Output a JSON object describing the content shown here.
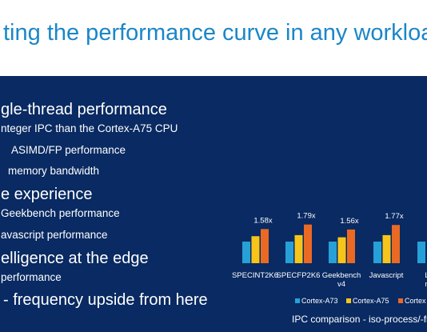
{
  "title": "ting the performance curve in any workloads",
  "bullets": {
    "h1": "gle-thread performance",
    "h1_items": [
      "nteger IPC than the Cortex-A75 CPU",
      "ASIMD/FP performance",
      " memory bandwidth"
    ],
    "h2": "e experience",
    "h2_items": [
      "Geekbench performance",
      "avascript performance"
    ],
    "h3": "elligence at the edge",
    "h3_items": [
      " performance"
    ],
    "h4": " - frequency upside from here"
  },
  "colors": {
    "background": "#092a62",
    "title": "#1b86c8",
    "cortex_a73": "#27a0d8",
    "cortex_a75": "#f7c51a",
    "cortex_new": "#ea6a24"
  },
  "chart_data": {
    "type": "bar",
    "title": "IPC comparison - iso-process/-fr",
    "categories": [
      "SPECINT2K6",
      "SPECFP2K6",
      "Geekbench v4",
      "Javascript",
      "LM me"
    ],
    "category_lines": [
      [
        "SPECINT2K6"
      ],
      [
        "SPECFP2K6"
      ],
      [
        "Geekbench",
        "v4"
      ],
      [
        "Javascript"
      ],
      [
        "LM",
        "me"
      ]
    ],
    "series": [
      {
        "name": "Cortex-A73",
        "values": [
          1.0,
          1.0,
          1.0,
          1.0,
          1.0
        ]
      },
      {
        "name": "Cortex-A75",
        "values": [
          1.25,
          1.3,
          1.2,
          1.3,
          null
        ]
      },
      {
        "name": "Cortex",
        "values": [
          1.58,
          1.79,
          1.56,
          1.77,
          null
        ]
      }
    ],
    "data_labels": [
      "1.58x",
      "1.79x",
      "1.56x",
      "1.77x"
    ],
    "legend": [
      "Cortex-A73",
      "Cortex-A75",
      "Cortex"
    ]
  }
}
